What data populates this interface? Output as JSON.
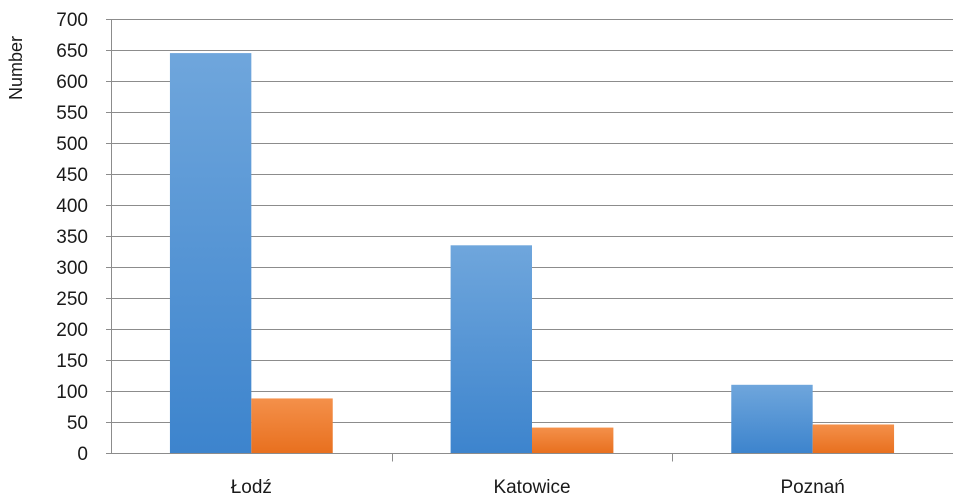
{
  "chart_data": {
    "type": "bar",
    "categories": [
      "Łodź",
      "Katowice",
      "Poznań"
    ],
    "series": [
      {
        "values": [
          645,
          335,
          110
        ],
        "color": "#4a8fd4"
      },
      {
        "values": [
          88,
          41,
          46
        ],
        "color": "#ed7d31"
      }
    ],
    "ylabel": "Number",
    "ylim": [
      0,
      700
    ],
    "yticks": [
      0,
      50,
      100,
      150,
      200,
      250,
      300,
      350,
      400,
      450,
      500,
      550,
      600,
      650,
      700
    ],
    "grid": true,
    "legend": "none"
  }
}
